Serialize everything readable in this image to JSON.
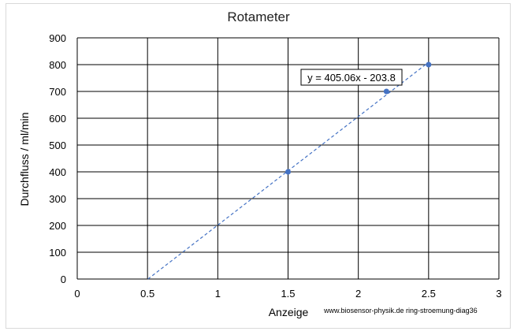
{
  "chart_data": {
    "type": "scatter",
    "title": "Rotameter",
    "xlabel": "Anzeige",
    "ylabel": "Durchfluss / ml/min",
    "xlim": [
      0,
      3
    ],
    "ylim": [
      0,
      900
    ],
    "x_ticks": [
      "0",
      "0.5",
      "1",
      "1.5",
      "2",
      "2.5",
      "3"
    ],
    "y_ticks": [
      "0",
      "100",
      "200",
      "300",
      "400",
      "500",
      "600",
      "700",
      "800",
      "900"
    ],
    "grid": true,
    "series": [
      {
        "x": [
          1.5,
          2.2,
          2.5
        ],
        "y": [
          400,
          700,
          800
        ],
        "color": "#4472c4"
      }
    ],
    "trendline": {
      "equation": "y = 405.06x - 203.8",
      "slope": 405.06,
      "intercept": -203.8,
      "color": "#4472c4",
      "style": "dashed"
    },
    "source": "www.biosensor-physik.de ring-stroemung-diag36"
  }
}
